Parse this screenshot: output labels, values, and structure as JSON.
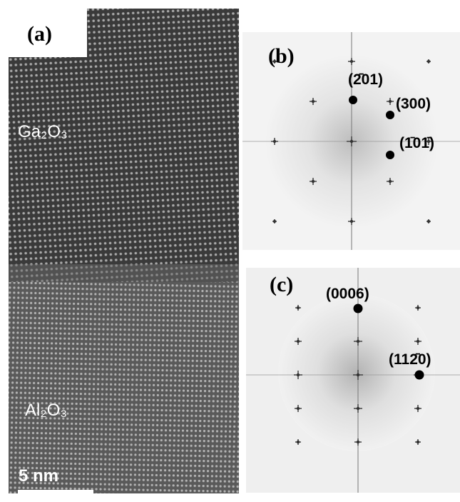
{
  "panels": {
    "a": {
      "label": "(a)",
      "top_phase": "Ga₂O₃",
      "bottom_phase": "Al₂O₃",
      "scale_bar": "5 nm"
    },
    "b": {
      "label": "(b)",
      "spots": [
        "(2̄01)",
        "(300)",
        "(1̄01̄)"
      ]
    },
    "c": {
      "label": "(c)",
      "spots": [
        "(0006)",
        "(112̄0)"
      ]
    }
  }
}
